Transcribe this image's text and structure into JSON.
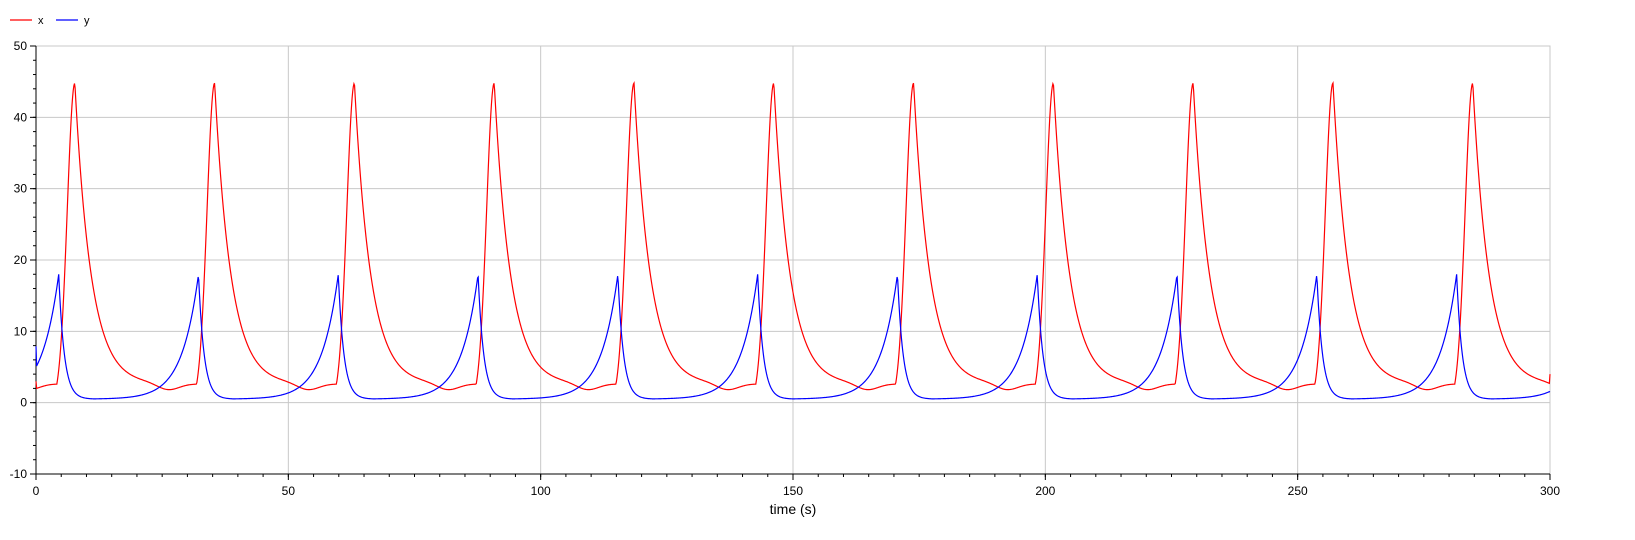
{
  "chart_data": {
    "type": "line",
    "xlabel": "time (s)",
    "ylabel": "",
    "xlim": [
      0,
      300
    ],
    "ylim": [
      -10,
      50
    ],
    "x_ticks": [
      0,
      50,
      100,
      150,
      200,
      250,
      300
    ],
    "y_ticks": [
      -10,
      0,
      10,
      20,
      30,
      40,
      50
    ],
    "grid": true,
    "legend_position": "top-left",
    "period": 27.7,
    "series": [
      {
        "name": "x",
        "color": "#ff0000",
        "peak": 44.8,
        "trough": 2.6,
        "start_value": 3.0,
        "end_value": 4.0,
        "peak_times": [
          7.7,
          35.4,
          63.1,
          90.8,
          118.5,
          146.2,
          173.9,
          201.6,
          229.3,
          257.0,
          284.7
        ]
      },
      {
        "name": "y",
        "color": "#0000ff",
        "peak": 18.0,
        "trough": 0.5,
        "start_value": 7.9,
        "end_value": 1.5,
        "peak_times": [
          4.5,
          32.2,
          59.9,
          87.6,
          115.3,
          143.0,
          170.7,
          198.4,
          226.1,
          253.8,
          281.5
        ]
      }
    ]
  }
}
